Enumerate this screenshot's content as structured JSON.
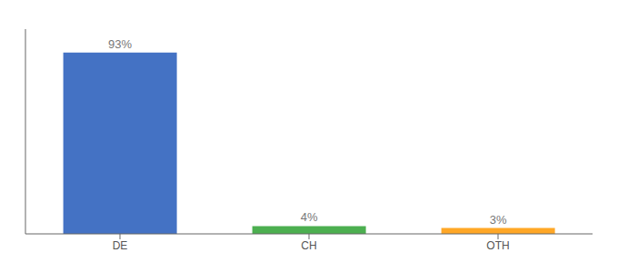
{
  "chart_data": {
    "type": "bar",
    "categories": [
      "DE",
      "CH",
      "OTH"
    ],
    "values": [
      93,
      4,
      3
    ],
    "value_labels": [
      "93%",
      "4%",
      "3%"
    ],
    "colors": [
      "#4472C4",
      "#4CAF50",
      "#FFA726"
    ],
    "ylim": [
      0,
      105
    ],
    "data_labels": true,
    "tick_labels": "x",
    "grid": false
  }
}
